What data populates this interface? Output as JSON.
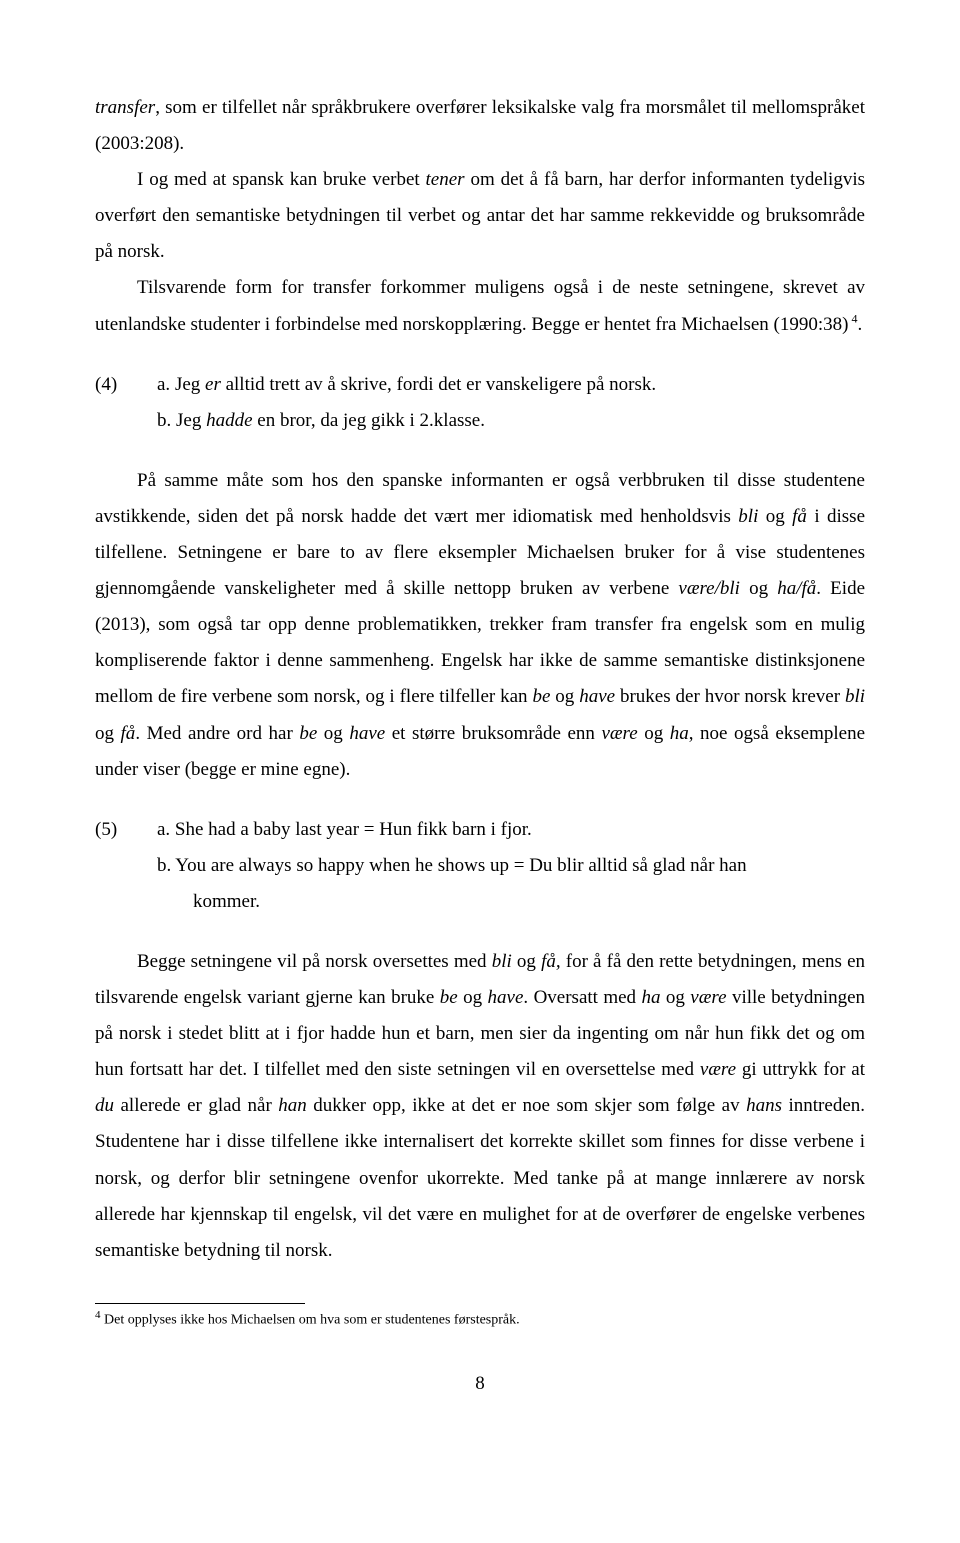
{
  "p1a": "transfer",
  "p1b": ", som er tilfellet når språkbrukere overfører leksikalske valg fra morsmålet til mellomspråket (2003:208).",
  "p2a": "I og med at spansk kan bruke verbet ",
  "p2b": "tener",
  "p2c": " om det å få barn, har derfor informanten tydeligvis overført den semantiske betydningen til verbet og antar det har samme rekkevidde og bruksområde på norsk.",
  "p3a": "Tilsvarende form for transfer forkommer muligens også i de neste setningene, skrevet av utenlandske studenter i forbindelse med norskopplæring. Begge er hentet fra Michaelsen (1990:38)",
  "p3sup": " 4",
  "p3b": ".",
  "ex4": {
    "num": "(4)",
    "a_label": "a. ",
    "a_pre": "Jeg ",
    "a_it": "er",
    "a_post": " alltid trett av å skrive, fordi det er vanskeligere på norsk.",
    "b_label": "b. ",
    "b_pre": "Jeg ",
    "b_it": "hadde",
    "b_post": " en bror, da jeg gikk i 2.klasse."
  },
  "p4a": "På samme måte som hos den spanske informanten er også verbbruken til disse studentene avstikkende, siden det på norsk hadde det vært mer idiomatisk med henholdsvis ",
  "p4b": "bli",
  "p4c": " og ",
  "p4d": "få",
  "p4e": " i disse tilfellene. Setningene er bare to av flere eksempler Michaelsen bruker for å vise studentenes gjennomgående vanskeligheter med å skille nettopp bruken av verbene ",
  "p4f": "være/bli",
  "p4g": " og ",
  "p4h": "ha/få",
  "p4i": ". Eide (2013), som også tar opp denne problematikken, trekker fram transfer fra engelsk som en mulig kompliserende faktor i denne sammenheng. Engelsk har ikke de samme semantiske distinksjonene mellom de fire verbene som norsk, og i flere tilfeller kan ",
  "p4j": "be",
  "p4k": " og ",
  "p4l": "have",
  "p4m": " brukes der hvor norsk krever ",
  "p4n": "bli",
  "p4o": " og ",
  "p4p": "få",
  "p4q": ". Med andre ord har ",
  "p4r": "be",
  "p4s": " og ",
  "p4t": "have",
  "p4u": " et større bruksområde enn ",
  "p4v": "være",
  "p4w": " og ",
  "p4x": "ha",
  "p4y": ", noe også eksemplene under viser (begge er mine egne).",
  "ex5": {
    "num": "(5)",
    "a": "a. She had a baby last year = Hun fikk barn i fjor.",
    "b_line1": "b. You are always so happy when he shows up = Du blir alltid så glad når han",
    "b_line2": "kommer."
  },
  "p5a": "Begge setningene vil på norsk oversettes med ",
  "p5b": "bli",
  "p5c": " og ",
  "p5d": "få,",
  "p5e": " for å få den rette betydningen, mens en tilsvarende engelsk variant gjerne kan bruke ",
  "p5f": "be",
  "p5g": " og ",
  "p5h": "have",
  "p5i": ". Oversatt med ",
  "p5j": "ha",
  "p5k": " og ",
  "p5l": "være",
  "p5m": " ville betydningen på norsk i stedet blitt at i fjor hadde hun et barn, men sier da ingenting om når hun fikk det og om hun fortsatt har det. I tilfellet med den siste setningen vil en oversettelse med ",
  "p5n": "være",
  "p5o": " gi uttrykk for at ",
  "p5p": "du",
  "p5q": " allerede er glad når ",
  "p5r": "han",
  "p5s": " dukker opp, ikke at det er noe som skjer som følge av ",
  "p5t": "hans",
  "p5u": " inntreden. Studentene har i disse tilfellene ikke  internalisert det korrekte skillet som finnes for disse verbene i norsk, og derfor blir setningene ovenfor ukorrekte. Med tanke på at mange innlærere av norsk allerede har kjennskap til engelsk, vil det være en mulighet for at de overfører de engelske verbenes semantiske betydning til norsk.",
  "footnote_sup": "4",
  "footnote_text": " Det opplyses ikke hos Michaelsen om hva som er studentenes førstespråk.",
  "pagenum": "8"
}
